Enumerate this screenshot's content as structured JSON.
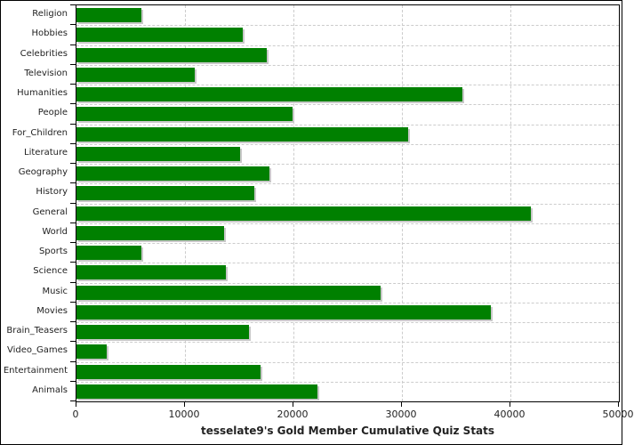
{
  "title": "tesselate9's Gold Member Cumulative Quiz Stats",
  "colors": {
    "bar": "#008000",
    "bar_shadow": "#c8c8c8",
    "gridline": "#cccccc",
    "axis": "#000000",
    "text": "#222222",
    "background": "#ffffff"
  },
  "chart_data": {
    "type": "bar",
    "orientation": "horizontal",
    "title": "tesselate9's Gold Member Cumulative Quiz Stats",
    "categories": [
      "Religion",
      "Hobbies",
      "Celebrities",
      "Television",
      "Humanities",
      "People",
      "For_Children",
      "Literature",
      "Geography",
      "History",
      "General",
      "World",
      "Sports",
      "Science",
      "Music",
      "Movies",
      "Brain_Teasers",
      "Video_Games",
      "Entertainment",
      "Animals"
    ],
    "values": [
      6000,
      15300,
      17500,
      10900,
      35600,
      19900,
      30600,
      15100,
      17800,
      16400,
      41900,
      13600,
      6000,
      13800,
      28000,
      38200,
      15900,
      2800,
      17000,
      22200
    ],
    "xlim": [
      0,
      50000
    ],
    "x_ticks": [
      0,
      10000,
      20000,
      30000,
      40000,
      50000
    ],
    "x_tick_labels": [
      "0",
      "10000",
      "20000",
      "30000",
      "40000",
      "50000"
    ],
    "grid": "dashed",
    "legend": "none",
    "bar_color": "#008000"
  }
}
